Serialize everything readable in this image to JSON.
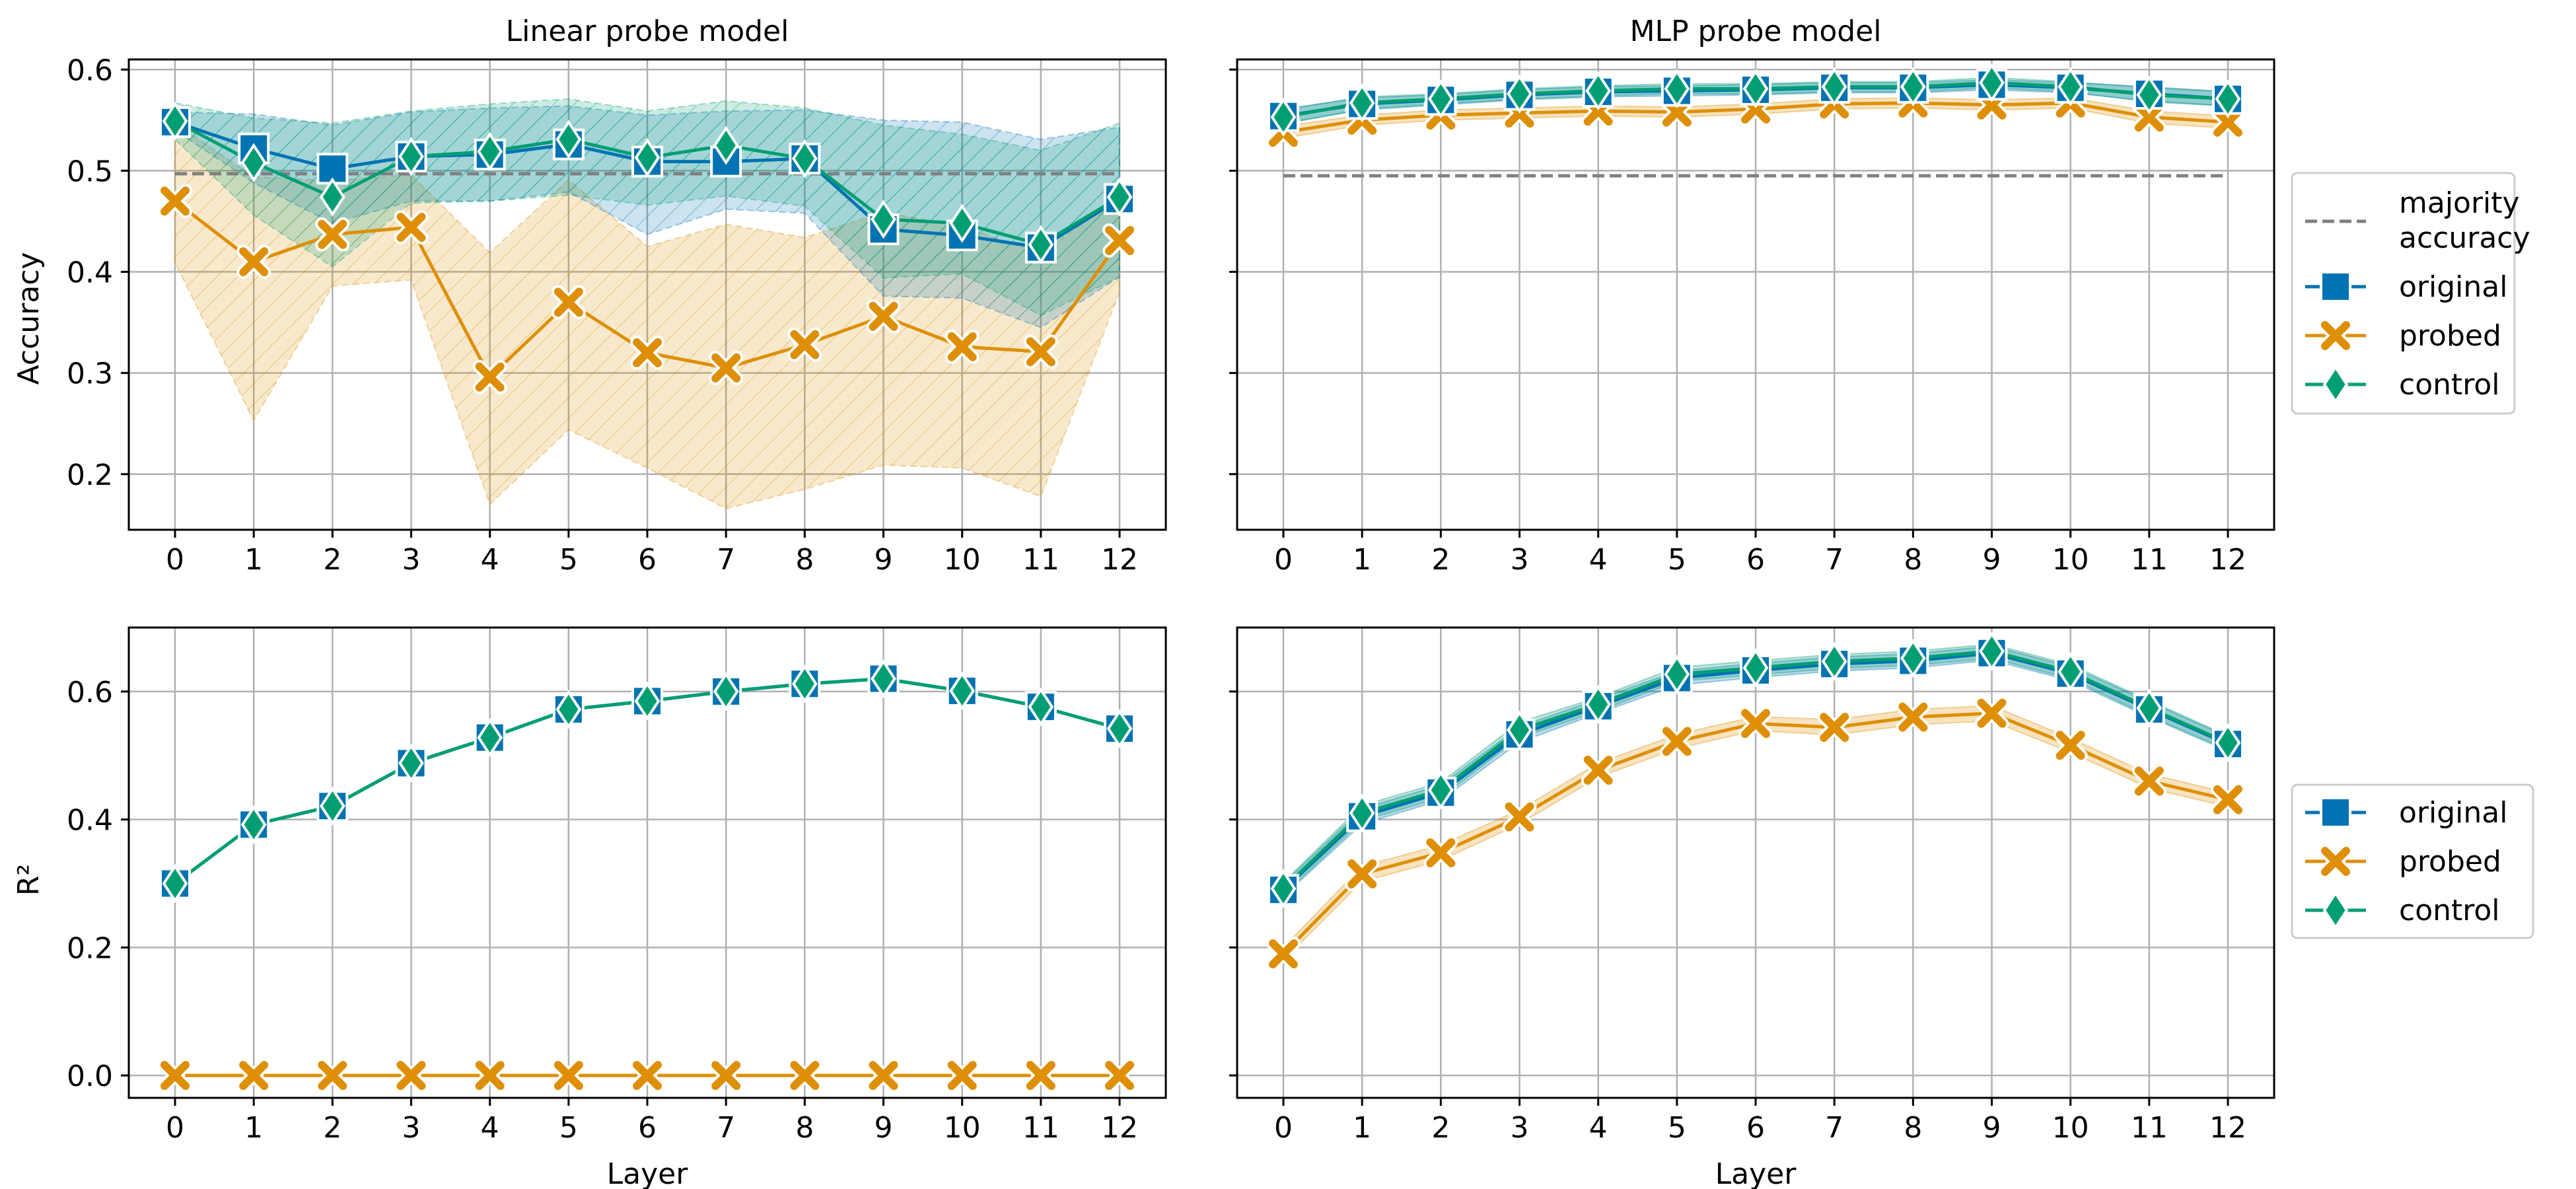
{
  "colors": {
    "original": "#0173b2",
    "probed": "#de8f05",
    "control": "#029e73",
    "majority": "#808080",
    "grid": "#b0b0b0"
  },
  "legend_top": {
    "majority_label": [
      "majority",
      "accuracy"
    ],
    "items": [
      "original",
      "probed",
      "control"
    ]
  },
  "legend_bottom": {
    "items": [
      "original",
      "probed",
      "control"
    ]
  },
  "chart_data": [
    {
      "id": "linear-accuracy",
      "type": "line",
      "title": "Linear probe model",
      "xlabel": "",
      "ylabel": "Accuracy",
      "x": [
        0,
        1,
        2,
        3,
        4,
        5,
        6,
        7,
        8,
        9,
        10,
        11,
        12
      ],
      "ylim": [
        0.145,
        0.61
      ],
      "yticks": [
        0.2,
        0.3,
        0.4,
        0.5,
        0.6
      ],
      "ytick_labels": [
        "0.2",
        "0.3",
        "0.4",
        "0.5",
        "0.6"
      ],
      "majority_accuracy": 0.497,
      "series": [
        {
          "name": "original",
          "values": [
            0.548,
            0.522,
            0.502,
            0.514,
            0.516,
            0.526,
            0.509,
            0.509,
            0.512,
            0.442,
            0.436,
            0.424,
            0.472
          ],
          "lower": [
            0.54,
            0.488,
            0.448,
            0.47,
            0.47,
            0.479,
            0.437,
            0.462,
            0.458,
            0.376,
            0.374,
            0.345,
            0.395
          ],
          "upper": [
            0.558,
            0.556,
            0.545,
            0.558,
            0.562,
            0.564,
            0.555,
            0.559,
            0.56,
            0.55,
            0.548,
            0.531,
            0.543
          ]
        },
        {
          "name": "probed",
          "values": [
            0.47,
            0.41,
            0.437,
            0.444,
            0.296,
            0.37,
            0.32,
            0.305,
            0.328,
            0.356,
            0.326,
            0.321,
            0.431
          ],
          "lower": [
            0.409,
            0.253,
            0.386,
            0.392,
            0.17,
            0.244,
            0.206,
            0.166,
            0.185,
            0.209,
            0.206,
            0.178,
            0.38
          ],
          "upper": [
            0.547,
            0.494,
            0.49,
            0.496,
            0.419,
            0.491,
            0.425,
            0.447,
            0.434,
            0.459,
            0.445,
            0.418,
            0.474
          ]
        },
        {
          "name": "control",
          "values": [
            0.549,
            0.508,
            0.474,
            0.514,
            0.519,
            0.531,
            0.513,
            0.525,
            0.512,
            0.452,
            0.448,
            0.427,
            0.474
          ],
          "lower": [
            0.531,
            0.456,
            0.405,
            0.468,
            0.47,
            0.476,
            0.466,
            0.475,
            0.465,
            0.394,
            0.398,
            0.357,
            0.395
          ],
          "upper": [
            0.567,
            0.552,
            0.547,
            0.559,
            0.566,
            0.571,
            0.559,
            0.569,
            0.562,
            0.545,
            0.536,
            0.52,
            0.547
          ]
        }
      ]
    },
    {
      "id": "mlp-accuracy",
      "type": "line",
      "title": "MLP probe model",
      "xlabel": "",
      "ylabel": "",
      "x": [
        0,
        1,
        2,
        3,
        4,
        5,
        6,
        7,
        8,
        9,
        10,
        11,
        12
      ],
      "ylim": [
        0.145,
        0.61
      ],
      "yticks": [
        0.2,
        0.3,
        0.4,
        0.5,
        0.6
      ],
      "ytick_labels": [
        "",
        "",
        "",
        "",
        ""
      ],
      "majority_accuracy": 0.495,
      "series": [
        {
          "name": "original",
          "values": [
            0.554,
            0.566,
            0.57,
            0.575,
            0.578,
            0.579,
            0.58,
            0.582,
            0.582,
            0.585,
            0.582,
            0.576,
            0.571
          ],
          "lower": [
            0.547,
            0.56,
            0.565,
            0.57,
            0.573,
            0.574,
            0.575,
            0.577,
            0.577,
            0.58,
            0.577,
            0.569,
            0.564
          ],
          "upper": [
            0.561,
            0.572,
            0.575,
            0.58,
            0.583,
            0.584,
            0.585,
            0.587,
            0.587,
            0.59,
            0.587,
            0.583,
            0.578
          ]
        },
        {
          "name": "probed",
          "values": [
            0.538,
            0.55,
            0.555,
            0.557,
            0.559,
            0.558,
            0.561,
            0.566,
            0.567,
            0.565,
            0.567,
            0.553,
            0.548
          ],
          "lower": [
            0.532,
            0.545,
            0.55,
            0.552,
            0.554,
            0.553,
            0.556,
            0.561,
            0.562,
            0.56,
            0.562,
            0.547,
            0.542
          ],
          "upper": [
            0.544,
            0.555,
            0.56,
            0.562,
            0.564,
            0.563,
            0.566,
            0.571,
            0.572,
            0.57,
            0.572,
            0.559,
            0.554
          ]
        },
        {
          "name": "control",
          "values": [
            0.553,
            0.567,
            0.571,
            0.576,
            0.579,
            0.581,
            0.581,
            0.583,
            0.583,
            0.587,
            0.583,
            0.575,
            0.571
          ],
          "lower": [
            0.546,
            0.561,
            0.566,
            0.571,
            0.574,
            0.576,
            0.576,
            0.578,
            0.578,
            0.582,
            0.578,
            0.568,
            0.564
          ],
          "upper": [
            0.56,
            0.573,
            0.576,
            0.581,
            0.584,
            0.586,
            0.586,
            0.588,
            0.588,
            0.592,
            0.588,
            0.582,
            0.578
          ]
        }
      ]
    },
    {
      "id": "linear-r2",
      "type": "line",
      "title": "",
      "xlabel": "Layer",
      "ylabel": "R²",
      "x": [
        0,
        1,
        2,
        3,
        4,
        5,
        6,
        7,
        8,
        9,
        10,
        11,
        12
      ],
      "ylim": [
        -0.035,
        0.7
      ],
      "yticks": [
        0.0,
        0.2,
        0.4,
        0.6
      ],
      "ytick_labels": [
        "0.0",
        "0.2",
        "0.4",
        "0.6"
      ],
      "series": [
        {
          "name": "original",
          "values": [
            0.3,
            0.392,
            0.421,
            0.488,
            0.528,
            0.572,
            0.585,
            0.6,
            0.612,
            0.62,
            0.601,
            0.576,
            0.542
          ]
        },
        {
          "name": "probed",
          "values": [
            0,
            0,
            0,
            0,
            0,
            0,
            0,
            0,
            0,
            0,
            0,
            0,
            0
          ]
        },
        {
          "name": "control",
          "values": [
            0.3,
            0.392,
            0.421,
            0.488,
            0.528,
            0.572,
            0.585,
            0.6,
            0.612,
            0.62,
            0.601,
            0.576,
            0.542
          ]
        }
      ]
    },
    {
      "id": "mlp-r2",
      "type": "line",
      "title": "",
      "xlabel": "Layer",
      "ylabel": "",
      "x": [
        0,
        1,
        2,
        3,
        4,
        5,
        6,
        7,
        8,
        9,
        10,
        11,
        12
      ],
      "ylim": [
        -0.035,
        0.7
      ],
      "yticks": [
        0.0,
        0.2,
        0.4,
        0.6
      ],
      "ytick_labels": [
        "",
        "",
        "",
        ""
      ],
      "series": [
        {
          "name": "original",
          "values": [
            0.29,
            0.405,
            0.442,
            0.533,
            0.577,
            0.621,
            0.633,
            0.643,
            0.648,
            0.66,
            0.628,
            0.572,
            0.518
          ],
          "lower": [
            0.28,
            0.393,
            0.43,
            0.521,
            0.566,
            0.61,
            0.622,
            0.632,
            0.637,
            0.649,
            0.617,
            0.56,
            0.507
          ],
          "upper": [
            0.3,
            0.417,
            0.454,
            0.545,
            0.588,
            0.632,
            0.644,
            0.654,
            0.659,
            0.671,
            0.639,
            0.584,
            0.529
          ]
        },
        {
          "name": "probed",
          "values": [
            0.19,
            0.315,
            0.348,
            0.404,
            0.477,
            0.522,
            0.55,
            0.544,
            0.56,
            0.566,
            0.516,
            0.46,
            0.431
          ],
          "lower": [
            0.18,
            0.303,
            0.336,
            0.393,
            0.466,
            0.511,
            0.539,
            0.532,
            0.548,
            0.554,
            0.505,
            0.449,
            0.42
          ],
          "upper": [
            0.2,
            0.327,
            0.36,
            0.415,
            0.488,
            0.533,
            0.561,
            0.556,
            0.572,
            0.578,
            0.527,
            0.471,
            0.442
          ]
        },
        {
          "name": "control",
          "values": [
            0.292,
            0.41,
            0.446,
            0.54,
            0.58,
            0.627,
            0.637,
            0.647,
            0.652,
            0.663,
            0.631,
            0.574,
            0.52
          ],
          "lower": [
            0.282,
            0.398,
            0.434,
            0.528,
            0.569,
            0.616,
            0.626,
            0.636,
            0.641,
            0.652,
            0.62,
            0.562,
            0.509
          ],
          "upper": [
            0.302,
            0.422,
            0.458,
            0.552,
            0.591,
            0.638,
            0.648,
            0.658,
            0.663,
            0.674,
            0.642,
            0.586,
            0.531
          ]
        }
      ]
    }
  ]
}
